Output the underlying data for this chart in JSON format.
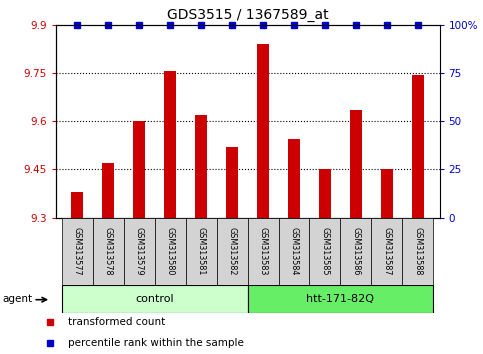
{
  "title": "GDS3515 / 1367589_at",
  "samples": [
    "GSM313577",
    "GSM313578",
    "GSM313579",
    "GSM313580",
    "GSM313581",
    "GSM313582",
    "GSM313583",
    "GSM313584",
    "GSM313585",
    "GSM313586",
    "GSM313587",
    "GSM313588"
  ],
  "bar_values": [
    9.38,
    9.47,
    9.6,
    9.755,
    9.62,
    9.52,
    9.84,
    9.545,
    9.45,
    9.635,
    9.45,
    9.745
  ],
  "percentile_values": [
    100,
    100,
    100,
    100,
    100,
    100,
    100,
    100,
    100,
    100,
    100,
    100
  ],
  "bar_color": "#cc0000",
  "percentile_color": "#0000cc",
  "ylim_left": [
    9.3,
    9.9
  ],
  "ylim_right": [
    0,
    100
  ],
  "yticks_left": [
    9.3,
    9.45,
    9.6,
    9.75,
    9.9
  ],
  "ytick_labels_left": [
    "9.3",
    "9.45",
    "9.6",
    "9.75",
    "9.9"
  ],
  "yticks_right": [
    0,
    25,
    50,
    75,
    100
  ],
  "ytick_labels_right": [
    "0",
    "25",
    "50",
    "75",
    "100%"
  ],
  "gridlines": [
    9.45,
    9.6,
    9.75
  ],
  "group1_label": "control",
  "group2_label": "htt-171-82Q",
  "agent_label": "agent",
  "legend_bar_label": "transformed count",
  "legend_pct_label": "percentile rank within the sample",
  "bar_color_hex": "#cc0000",
  "percentile_color_hex": "#0000cc",
  "left_tick_color": "#cc0000",
  "right_tick_color": "#0000cc",
  "group1_color": "#ccffcc",
  "group2_color": "#66ee66",
  "sample_bg_color": "#d3d3d3",
  "bar_width": 0.4
}
